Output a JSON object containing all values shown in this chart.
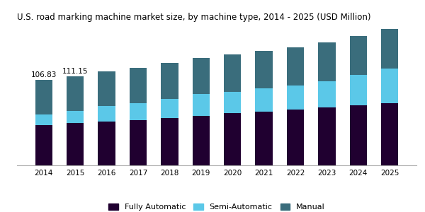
{
  "title": "U.S. road marking machine market size, by machine type, 2014 - 2025 (USD Million)",
  "years": [
    2014,
    2015,
    2016,
    2017,
    2018,
    2019,
    2020,
    2021,
    2022,
    2023,
    2024,
    2025
  ],
  "fully_automatic": [
    50.0,
    53.0,
    55.0,
    57.0,
    59.5,
    62.0,
    65.0,
    67.5,
    70.0,
    72.5,
    75.0,
    78.0
  ],
  "semi_automatic": [
    14.0,
    15.0,
    19.0,
    21.0,
    24.0,
    27.0,
    27.0,
    28.5,
    30.0,
    33.0,
    38.0,
    43.0
  ],
  "manual": [
    42.83,
    43.15,
    43.5,
    44.0,
    44.5,
    45.5,
    46.5,
    47.0,
    47.5,
    48.5,
    49.0,
    50.0
  ],
  "annotations": {
    "2014": "106.83",
    "2015": "111.15"
  },
  "colors": {
    "fully_automatic": "#200030",
    "semi_automatic": "#5bc8e8",
    "manual": "#3a6d7c"
  },
  "legend_labels": [
    "Fully Automatic",
    "Semi-Automatic",
    "Manual"
  ],
  "title_fontsize": 8.5,
  "bar_width": 0.55,
  "ylim": [
    0,
    175
  ]
}
